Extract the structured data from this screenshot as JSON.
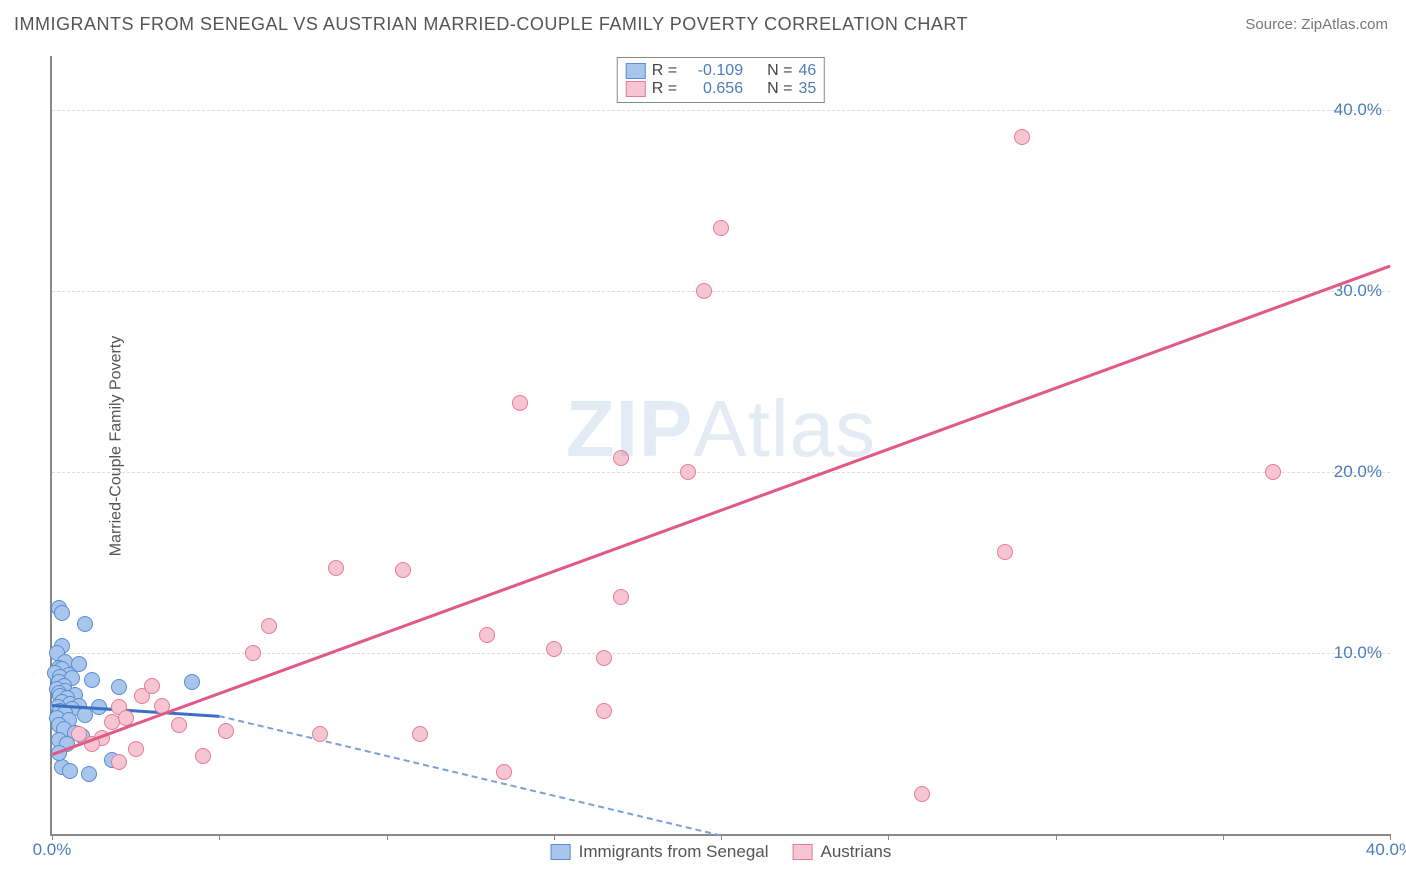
{
  "title": "IMMIGRANTS FROM SENEGAL VS AUSTRIAN MARRIED-COUPLE FAMILY POVERTY CORRELATION CHART",
  "source_prefix": "Source: ",
  "source_name": "ZipAtlas.com",
  "ylabel": "Married-Couple Family Poverty",
  "watermark_a": "ZIP",
  "watermark_b": "Atlas",
  "chart": {
    "type": "scatter",
    "xlim": [
      0,
      40
    ],
    "ylim": [
      0,
      43
    ],
    "x_ticks": [
      0,
      20,
      40
    ],
    "x_tick_labels": [
      "0.0%",
      "",
      "40.0%"
    ],
    "x_minor_ticks": [
      5,
      10,
      15,
      25,
      30,
      35
    ],
    "y_ticks": [
      10,
      20,
      30,
      40
    ],
    "y_tick_labels": [
      "10.0%",
      "20.0%",
      "30.0%",
      "40.0%"
    ],
    "background_color": "#ffffff",
    "grid_color": "#dddddd",
    "axis_color": "#888888",
    "tick_label_color": "#4a7ebb",
    "title_color": "#555555",
    "title_fontsize": 18,
    "label_fontsize": 16,
    "tick_fontsize": 17,
    "marker_radius": 8,
    "marker_stroke": 1.5,
    "series": [
      {
        "key": "senegal",
        "label": "Immigrants from Senegal",
        "R": "-0.109",
        "N": "46",
        "fill": "#a8c6ec",
        "stroke": "#5b8bd4",
        "line_solid_color": "#3a6fc4",
        "line_dashed_color": "#7ba0d8",
        "trend_solid": {
          "x1": 0,
          "y1": 7.2,
          "x2": 5,
          "y2": 6.6
        },
        "trend_dashed": {
          "x1": 5,
          "y1": 6.6,
          "x2": 20,
          "y2": 0.0
        },
        "points": [
          [
            0.2,
            12.5
          ],
          [
            0.3,
            12.2
          ],
          [
            1.0,
            11.6
          ],
          [
            0.3,
            10.4
          ],
          [
            0.15,
            10.0
          ],
          [
            0.4,
            9.5
          ],
          [
            0.8,
            9.4
          ],
          [
            0.2,
            9.2
          ],
          [
            0.3,
            9.1
          ],
          [
            0.1,
            8.9
          ],
          [
            0.5,
            8.8
          ],
          [
            0.25,
            8.7
          ],
          [
            0.6,
            8.6
          ],
          [
            1.2,
            8.5
          ],
          [
            0.2,
            8.4
          ],
          [
            0.35,
            8.2
          ],
          [
            2.0,
            8.1
          ],
          [
            4.2,
            8.4
          ],
          [
            0.15,
            8.0
          ],
          [
            0.4,
            7.9
          ],
          [
            0.2,
            7.8
          ],
          [
            0.7,
            7.7
          ],
          [
            0.25,
            7.6
          ],
          [
            0.45,
            7.5
          ],
          [
            0.3,
            7.3
          ],
          [
            0.55,
            7.2
          ],
          [
            0.8,
            7.1
          ],
          [
            0.18,
            7.0
          ],
          [
            1.4,
            7.0
          ],
          [
            0.6,
            6.9
          ],
          [
            0.25,
            6.8
          ],
          [
            0.4,
            6.7
          ],
          [
            1.0,
            6.6
          ],
          [
            0.15,
            6.4
          ],
          [
            0.5,
            6.3
          ],
          [
            0.2,
            6.0
          ],
          [
            0.35,
            5.8
          ],
          [
            0.7,
            5.6
          ],
          [
            0.9,
            5.4
          ],
          [
            0.2,
            5.2
          ],
          [
            0.45,
            5.0
          ],
          [
            1.8,
            4.1
          ],
          [
            0.3,
            3.7
          ],
          [
            0.55,
            3.5
          ],
          [
            1.1,
            3.3
          ],
          [
            0.2,
            4.5
          ]
        ]
      },
      {
        "key": "austrians",
        "label": "Austrians",
        "R": "0.656",
        "N": "35",
        "fill": "#f6c5d2",
        "stroke": "#e67a99",
        "line_solid_color": "#e05a84",
        "line_dashed_color": "#e05a84",
        "trend_solid": {
          "x1": 0,
          "y1": 4.5,
          "x2": 40,
          "y2": 31.5
        },
        "trend_dashed": null,
        "points": [
          [
            29,
            38.5
          ],
          [
            20,
            33.5
          ],
          [
            19.5,
            30.0
          ],
          [
            14,
            23.8
          ],
          [
            17,
            20.8
          ],
          [
            36.5,
            20.0
          ],
          [
            19,
            20.0
          ],
          [
            28.5,
            15.6
          ],
          [
            8.5,
            14.7
          ],
          [
            10.5,
            14.6
          ],
          [
            17,
            13.1
          ],
          [
            13,
            11.0
          ],
          [
            6.5,
            11.5
          ],
          [
            15,
            10.2
          ],
          [
            6,
            10.0
          ],
          [
            16.5,
            9.7
          ],
          [
            2.7,
            7.6
          ],
          [
            3.3,
            7.1
          ],
          [
            2.0,
            7.0
          ],
          [
            2.2,
            6.4
          ],
          [
            16.5,
            6.8
          ],
          [
            3.8,
            6.0
          ],
          [
            5.2,
            5.7
          ],
          [
            8.0,
            5.5
          ],
          [
            11.0,
            5.5
          ],
          [
            1.5,
            5.3
          ],
          [
            2.5,
            4.7
          ],
          [
            4.5,
            4.3
          ],
          [
            2.0,
            4.0
          ],
          [
            13.5,
            3.4
          ],
          [
            1.2,
            5.0
          ],
          [
            3.0,
            8.2
          ],
          [
            26.0,
            2.2
          ],
          [
            1.8,
            6.2
          ],
          [
            0.8,
            5.5
          ]
        ]
      }
    ]
  },
  "legend_top_prefix_R": "R =",
  "legend_top_prefix_N": "N ="
}
